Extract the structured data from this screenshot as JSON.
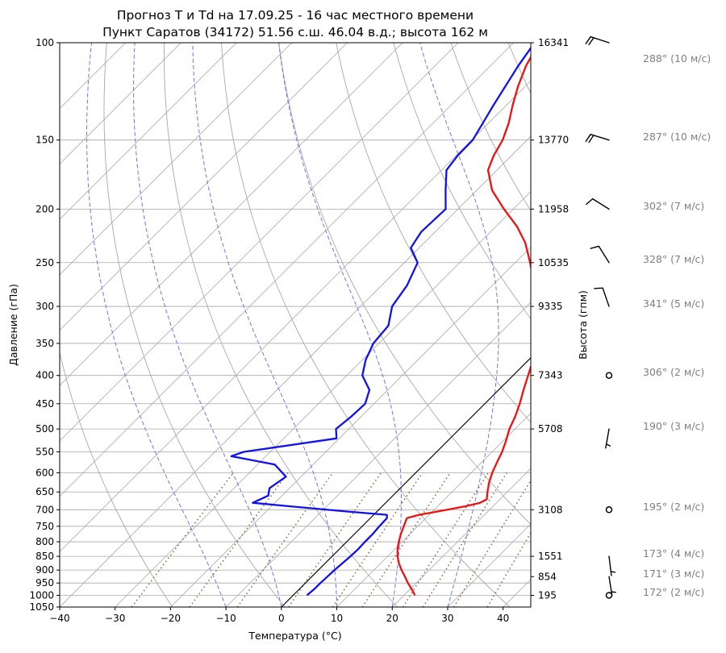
{
  "title": {
    "line1": "Прогноз T и Td на 17.09.25 - 16 час местного времени",
    "line2": "Пункт Саратов (34172) 51.56 с.ш. 46.04 в.д.; высота 162 м"
  },
  "chart_data": {
    "type": "line",
    "subtype": "skew-T log-p diagram",
    "xlabel": "Температура (°C)",
    "ylabel": "Давление (гПа)",
    "y2label": "Высота (гпм)",
    "xlim": [
      -40,
      45
    ],
    "ylim": [
      1050,
      100
    ],
    "yscale": "log",
    "x_ticks": [
      -40,
      -30,
      -20,
      -10,
      0,
      10,
      20,
      30,
      40
    ],
    "y_ticks": [
      1050,
      1000,
      950,
      900,
      850,
      800,
      750,
      700,
      650,
      600,
      550,
      500,
      450,
      400,
      350,
      300,
      250,
      200,
      150,
      100
    ],
    "height_ticks": [
      {
        "p": 1000,
        "label": "195"
      },
      {
        "p": 925,
        "label": "854"
      },
      {
        "p": 850,
        "label": "1551"
      },
      {
        "p": 700,
        "label": "3108"
      },
      {
        "p": 500,
        "label": "5708"
      },
      {
        "p": 400,
        "label": "7343"
      },
      {
        "p": 300,
        "label": "9335"
      },
      {
        "p": 250,
        "label": "10535"
      },
      {
        "p": 200,
        "label": "11958"
      },
      {
        "p": 150,
        "label": "13770"
      },
      {
        "p": 100,
        "label": "16341"
      }
    ],
    "series": [
      {
        "color": "#ee1111",
        "points": [
          [
            1000,
            22.0
          ],
          [
            975,
            20.3
          ],
          [
            950,
            18.5
          ],
          [
            925,
            16.8
          ],
          [
            900,
            15.0
          ],
          [
            875,
            13.3
          ],
          [
            850,
            11.8
          ],
          [
            825,
            10.5
          ],
          [
            800,
            9.4
          ],
          [
            775,
            8.4
          ],
          [
            750,
            7.5
          ],
          [
            725,
            6.6
          ],
          [
            715,
            8.2
          ],
          [
            705,
            11.0
          ],
          [
            690,
            15.0
          ],
          [
            680,
            17.0
          ],
          [
            670,
            17.6
          ],
          [
            650,
            16.4
          ],
          [
            625,
            15.0
          ],
          [
            600,
            13.8
          ],
          [
            575,
            12.8
          ],
          [
            550,
            11.8
          ],
          [
            525,
            10.5
          ],
          [
            500,
            9.0
          ],
          [
            475,
            7.8
          ],
          [
            450,
            6.3
          ],
          [
            425,
            4.5
          ],
          [
            400,
            2.7
          ],
          [
            375,
            0.8
          ],
          [
            350,
            -1.8
          ],
          [
            325,
            -4.5
          ],
          [
            300,
            -8.0
          ],
          [
            275,
            -12.4
          ],
          [
            250,
            -17.3
          ],
          [
            230,
            -21.8
          ],
          [
            215,
            -26.2
          ],
          [
            200,
            -31.7
          ],
          [
            185,
            -37.2
          ],
          [
            170,
            -41.6
          ],
          [
            160,
            -43.2
          ],
          [
            150,
            -44.4
          ],
          [
            140,
            -46.3
          ],
          [
            130,
            -48.8
          ],
          [
            120,
            -51.3
          ],
          [
            110,
            -53.6
          ],
          [
            100,
            -55.4
          ]
        ]
      },
      {
        "color": "#1111ee",
        "points": [
          [
            1000,
            2.5
          ],
          [
            975,
            2.7
          ],
          [
            950,
            2.7
          ],
          [
            925,
            2.8
          ],
          [
            900,
            2.9
          ],
          [
            875,
            3.1
          ],
          [
            850,
            3.3
          ],
          [
            825,
            3.4
          ],
          [
            800,
            3.3
          ],
          [
            775,
            3.3
          ],
          [
            750,
            3.1
          ],
          [
            725,
            3.0
          ],
          [
            715,
            2.4
          ],
          [
            705,
            -5.6
          ],
          [
            690,
            -16.7
          ],
          [
            680,
            -24.0
          ],
          [
            660,
            -22.5
          ],
          [
            640,
            -23.6
          ],
          [
            610,
            -22.7
          ],
          [
            580,
            -26.9
          ],
          [
            560,
            -36.3
          ],
          [
            550,
            -34.8
          ],
          [
            520,
            -20.5
          ],
          [
            500,
            -22.3
          ],
          [
            475,
            -21.8
          ],
          [
            450,
            -21.6
          ],
          [
            425,
            -23.3
          ],
          [
            400,
            -27.2
          ],
          [
            375,
            -29.4
          ],
          [
            350,
            -31.0
          ],
          [
            325,
            -31.5
          ],
          [
            300,
            -34.3
          ],
          [
            275,
            -35.4
          ],
          [
            250,
            -37.6
          ],
          [
            235,
            -41.5
          ],
          [
            220,
            -42.5
          ],
          [
            200,
            -42.2
          ],
          [
            185,
            -45.6
          ],
          [
            170,
            -49.1
          ],
          [
            160,
            -49.7
          ],
          [
            150,
            -49.8
          ],
          [
            140,
            -51.0
          ],
          [
            130,
            -52.3
          ],
          [
            120,
            -53.6
          ],
          [
            110,
            -55.0
          ],
          [
            100,
            -56.2
          ]
        ]
      }
    ],
    "winds": [
      {
        "p": 100,
        "dir": 288,
        "speed": 10,
        "label": "288° (10 м/с)"
      },
      {
        "p": 150,
        "dir": 287,
        "speed": 10,
        "label": "287° (10 м/с)"
      },
      {
        "p": 200,
        "dir": 302,
        "speed": 7,
        "label": "302° (7 м/с)"
      },
      {
        "p": 250,
        "dir": 328,
        "speed": 7,
        "label": "328° (7 м/с)"
      },
      {
        "p": 300,
        "dir": 341,
        "speed": 5,
        "label": "341° (5 м/с)"
      },
      {
        "p": 400,
        "dir": 306,
        "speed": 2,
        "label": "306° (2 м/с)"
      },
      {
        "p": 500,
        "dir": 190,
        "speed": 3,
        "label": "190° (3 м/с)"
      },
      {
        "p": 700,
        "dir": 195,
        "speed": 2,
        "label": "195° (2 м/с)"
      },
      {
        "p": 850,
        "dir": 173,
        "speed": 4,
        "label": "173° (4 м/с)"
      },
      {
        "p": 925,
        "dir": 171,
        "speed": 3,
        "label": "171° (3 м/с)"
      },
      {
        "p": 1000,
        "dir": 172,
        "speed": 2,
        "label": "172° (2 м/с)"
      }
    ],
    "background_lines": {
      "dry_adiabats_theta_k": [
        230,
        250,
        270,
        290,
        310,
        330,
        350,
        370,
        390,
        410,
        430,
        450,
        470,
        490
      ],
      "moist_adiabats_start_c": [
        -10,
        0,
        10,
        20,
        30
      ],
      "mixing_ratio_g_per_kg": [
        0.4,
        1,
        2,
        4,
        7,
        10,
        16,
        20,
        28,
        40
      ],
      "isotherm_highlight_c": 0
    },
    "colors": {
      "temperature": "#ee1111",
      "dewpoint": "#1111ee",
      "grid": "#a8a8a8",
      "dry_adiabat": "#a8a8a8",
      "moist_adiabat": "#6b74f0",
      "mixing_ratio": "#96603a",
      "zero_isotherm": "#000000",
      "wind_label": "#808080"
    }
  }
}
